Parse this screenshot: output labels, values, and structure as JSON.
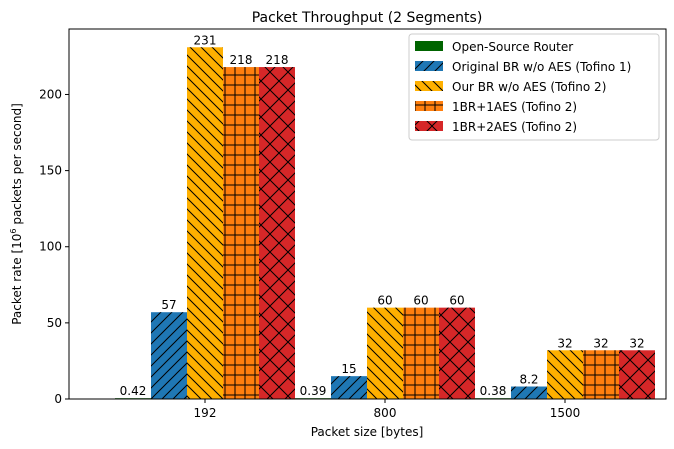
{
  "chart_data": {
    "type": "bar",
    "title": "Packet Throughput (2 Segments)",
    "xlabel": "Packet size [bytes]",
    "ylabel_prefix": "Packet rate [10",
    "ylabel_sup": "6",
    "ylabel_suffix": " packets per second]",
    "categories": [
      "192",
      "800",
      "1500"
    ],
    "ylim": [
      0,
      243
    ],
    "yticks": [
      0,
      50,
      100,
      150,
      200
    ],
    "legend_position": "top-right",
    "series": [
      {
        "name": "Open-Source Router",
        "values": [
          0.42,
          0.39,
          0.38
        ],
        "labels": [
          "0.42",
          "0.39",
          "0.38"
        ],
        "color": "#006400",
        "hatch": "none"
      },
      {
        "name": "Original BR w/o AES (Tofino 1)",
        "values": [
          57,
          15,
          8.2
        ],
        "labels": [
          "57",
          "15",
          "8.2"
        ],
        "color": "#1f77b4",
        "hatch": "forward-diagonal"
      },
      {
        "name": "Our BR w/o AES (Tofino 2)",
        "values": [
          231,
          60,
          32
        ],
        "labels": [
          "231",
          "60",
          "32"
        ],
        "color": "#ffb000",
        "hatch": "back-diagonal"
      },
      {
        "name": "1BR+1AES (Tofino 2)",
        "values": [
          218,
          60,
          32
        ],
        "labels": [
          "218",
          "60",
          "32"
        ],
        "color": "#ff7f0e",
        "hatch": "grid"
      },
      {
        "name": "1BR+2AES (Tofino 2)",
        "values": [
          218,
          60,
          32
        ],
        "labels": [
          "218",
          "60",
          "32"
        ],
        "color": "#d62728",
        "hatch": "cross-diagonal"
      }
    ]
  }
}
